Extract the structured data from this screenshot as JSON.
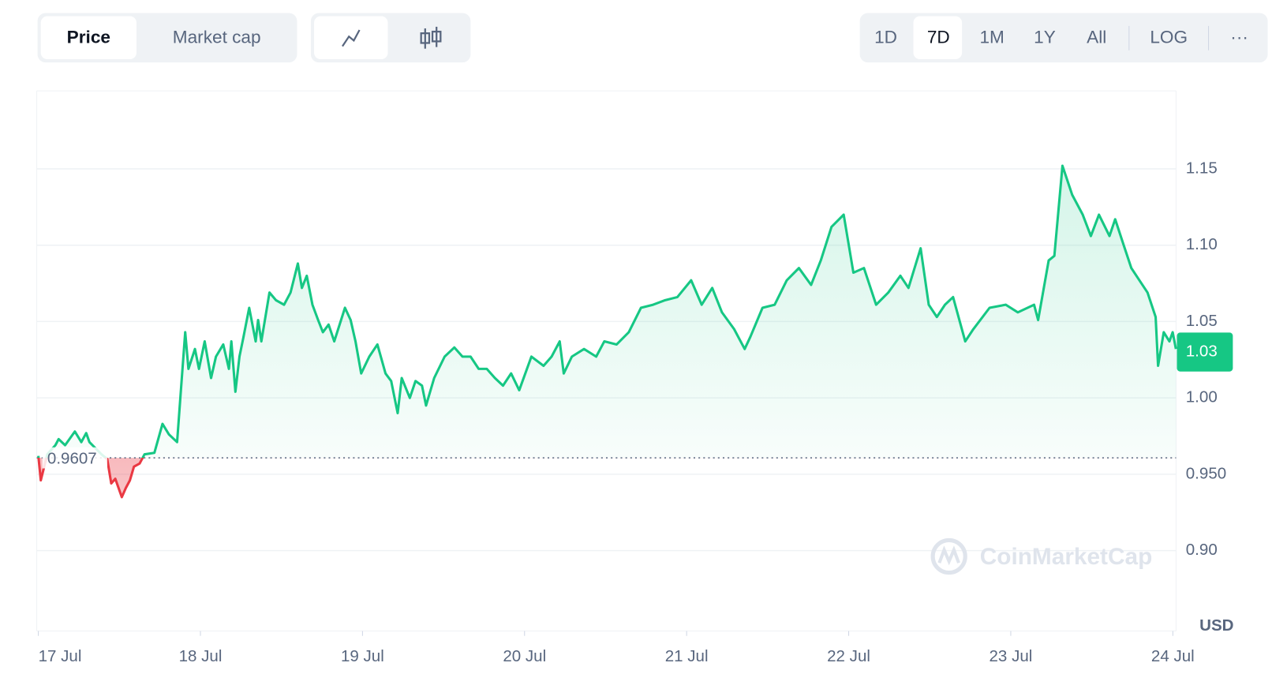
{
  "controls": {
    "metric_tabs": [
      "Price",
      "Market cap"
    ],
    "ranges": [
      "1D",
      "7D",
      "1M",
      "1Y",
      "All"
    ],
    "scale": "LOG",
    "more": "···"
  },
  "chart_data": {
    "type": "line",
    "x": [
      0,
      0.015,
      0.055,
      0.105,
      0.125,
      0.165,
      0.225,
      0.265,
      0.295,
      0.315,
      0.39,
      0.425,
      0.45,
      0.475,
      0.515,
      0.54,
      0.565,
      0.59,
      0.625,
      0.655,
      0.716,
      0.766,
      0.806,
      0.856,
      0.876,
      0.906,
      0.926,
      0.966,
      0.991,
      1.026,
      1.066,
      1.096,
      1.141,
      1.176,
      1.191,
      1.216,
      1.241,
      1.266,
      1.301,
      1.341,
      1.356,
      1.376,
      1.426,
      1.466,
      1.516,
      1.556,
      1.601,
      1.626,
      1.656,
      1.691,
      1.726,
      1.756,
      1.791,
      1.826,
      1.892,
      1.927,
      1.957,
      1.992,
      2.042,
      2.092,
      2.142,
      2.177,
      2.217,
      2.242,
      2.292,
      2.327,
      2.367,
      2.392,
      2.442,
      2.507,
      2.567,
      2.617,
      2.667,
      2.717,
      2.767,
      2.817,
      2.867,
      2.917,
      2.967,
      3.042,
      3.117,
      3.167,
      3.217,
      3.242,
      3.292,
      3.367,
      3.442,
      3.492,
      3.568,
      3.643,
      3.718,
      3.793,
      3.868,
      3.943,
      4.028,
      4.093,
      4.158,
      4.218,
      4.293,
      4.358,
      4.393,
      4.468,
      4.543,
      4.618,
      4.693,
      4.768,
      4.828,
      4.894,
      4.969,
      5.029,
      5.094,
      5.169,
      5.244,
      5.319,
      5.369,
      5.444,
      5.494,
      5.544,
      5.594,
      5.644,
      5.719,
      5.769,
      5.869,
      5.969,
      6.044,
      6.144,
      6.169,
      6.234,
      6.269,
      6.319,
      6.379,
      6.444,
      6.494,
      6.544,
      6.609,
      6.644,
      6.694,
      6.744,
      6.794,
      6.844,
      6.894,
      6.909,
      6.944,
      6.979,
      6.999,
      7.019
    ],
    "values": [
      0.962,
      0.946,
      0.963,
      0.969,
      0.973,
      0.969,
      0.978,
      0.971,
      0.977,
      0.971,
      0.963,
      0.96,
      0.944,
      0.947,
      0.935,
      0.941,
      0.946,
      0.955,
      0.957,
      0.963,
      0.964,
      0.983,
      0.976,
      0.971,
      1.0,
      1.043,
      1.019,
      1.032,
      1.019,
      1.037,
      1.013,
      1.027,
      1.035,
      1.019,
      1.037,
      1.004,
      1.027,
      1.04,
      1.059,
      1.037,
      1.051,
      1.037,
      1.069,
      1.064,
      1.061,
      1.069,
      1.088,
      1.072,
      1.08,
      1.061,
      1.051,
      1.043,
      1.048,
      1.037,
      1.059,
      1.051,
      1.037,
      1.016,
      1.027,
      1.035,
      1.016,
      1.011,
      0.99,
      1.013,
      1.0,
      1.011,
      1.008,
      0.995,
      1.013,
      1.027,
      1.033,
      1.027,
      1.027,
      1.019,
      1.019,
      1.013,
      1.008,
      1.016,
      1.005,
      1.027,
      1.021,
      1.027,
      1.037,
      1.016,
      1.027,
      1.032,
      1.027,
      1.037,
      1.035,
      1.043,
      1.059,
      1.061,
      1.064,
      1.066,
      1.077,
      1.061,
      1.072,
      1.056,
      1.045,
      1.032,
      1.04,
      1.059,
      1.061,
      1.077,
      1.085,
      1.074,
      1.09,
      1.112,
      1.12,
      1.082,
      1.085,
      1.061,
      1.069,
      1.08,
      1.072,
      1.098,
      1.061,
      1.053,
      1.061,
      1.066,
      1.037,
      1.045,
      1.059,
      1.061,
      1.056,
      1.061,
      1.051,
      1.09,
      1.093,
      1.152,
      1.133,
      1.12,
      1.106,
      1.12,
      1.106,
      1.117,
      1.101,
      1.085,
      1.077,
      1.069,
      1.053,
      1.021,
      1.043,
      1.037,
      1.043,
      1.032
    ],
    "baseline": 0.9607,
    "current_price": 1.03,
    "color": "#16c784",
    "down_color": "#ea3943",
    "grid": true,
    "xlim": [
      -0.01,
      7.02
    ],
    "xticks": [
      {
        "value": 0,
        "label": "17 Jul"
      },
      {
        "value": 1,
        "label": "18 Jul"
      },
      {
        "value": 2,
        "label": "19 Jul"
      },
      {
        "value": 3,
        "label": "20 Jul"
      },
      {
        "value": 4,
        "label": "21 Jul"
      },
      {
        "value": 5,
        "label": "22 Jul"
      },
      {
        "value": 6,
        "label": "23 Jul"
      },
      {
        "value": 7,
        "label": "24 Jul"
      }
    ],
    "ylim": [
      0.8473,
      1.2011
    ],
    "yticks": [
      {
        "value": 0.9,
        "label": "0.90"
      },
      {
        "value": 0.95,
        "label": "0.950"
      },
      {
        "value": 1,
        "label": "1.00"
      },
      1.05,
      {
        "value": 1.1,
        "label": "1.10"
      },
      1.15
    ],
    "y_unit": "USD",
    "watermark": "CoinMarketCap"
  }
}
